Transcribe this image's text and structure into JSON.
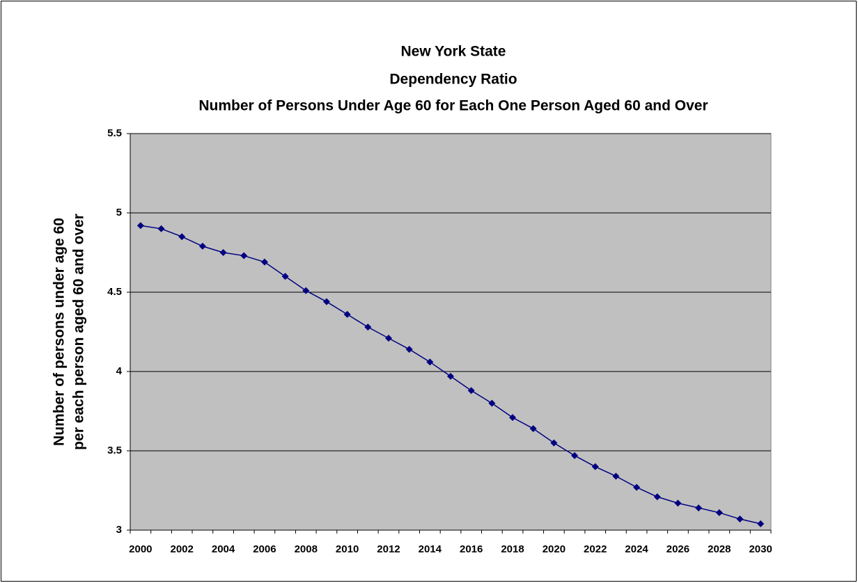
{
  "chart_data": {
    "type": "line",
    "title": [
      "New York State",
      "Dependency Ratio",
      "Number of Persons Under Age 60 for Each One Person Aged 60 and Over"
    ],
    "y_label": [
      "Number of persons under age 60",
      "per each person aged 60 and over"
    ],
    "categories": [
      "2000",
      null,
      "2002",
      null,
      "2004",
      null,
      "2006",
      null,
      "2008",
      null,
      "2010",
      null,
      "2012",
      null,
      "2014",
      null,
      "2016",
      null,
      "2018",
      null,
      "2020",
      null,
      "2022",
      null,
      "2024",
      null,
      "2026",
      null,
      "2028",
      null,
      "2030"
    ],
    "values": [
      4.92,
      4.9,
      4.85,
      4.79,
      4.75,
      4.73,
      4.69,
      4.6,
      4.51,
      4.44,
      4.36,
      4.28,
      4.21,
      4.14,
      4.06,
      3.97,
      3.88,
      3.8,
      3.71,
      3.64,
      3.55,
      3.47,
      3.4,
      3.34,
      3.27,
      3.21,
      3.17,
      3.14,
      3.11,
      3.07,
      3.04
    ],
    "color": "#000080",
    "plot_background": "#c0c0c0",
    "ylim": [
      3,
      5.5
    ],
    "yticks": [
      3,
      3.5,
      4,
      4.5,
      5,
      5.5
    ],
    "grid": true
  }
}
